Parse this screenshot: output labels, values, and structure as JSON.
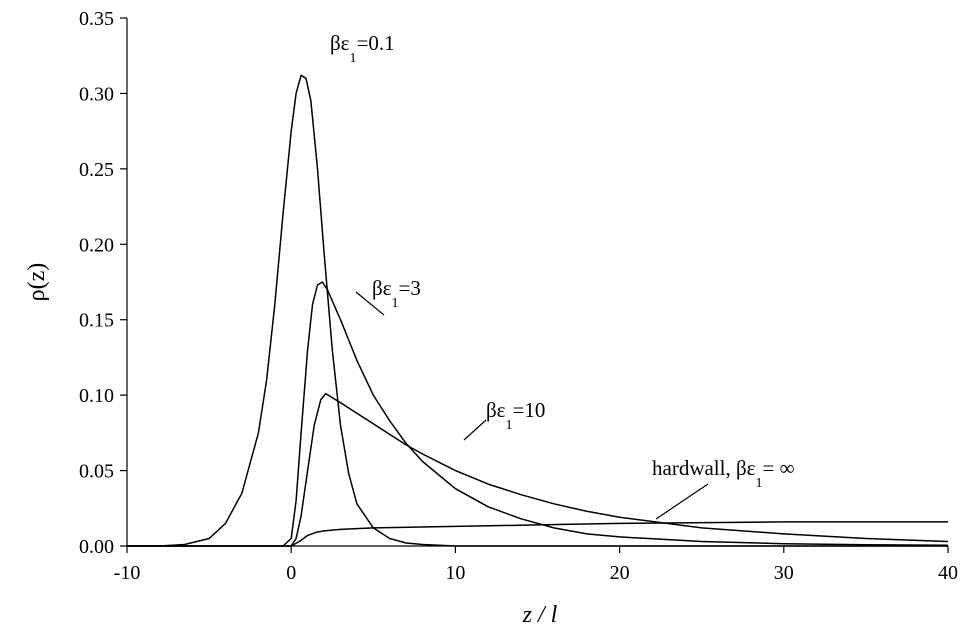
{
  "chart_data": {
    "type": "line",
    "title": "",
    "xlabel": "z / l",
    "ylabel": "ρ(z)",
    "xlim": [
      -10,
      40
    ],
    "ylim": [
      0,
      0.35
    ],
    "xticks": [
      "-10",
      "0",
      "10",
      "20",
      "30",
      "40"
    ],
    "yticks": [
      "0.00",
      "0.05",
      "0.10",
      "0.15",
      "0.20",
      "0.25",
      "0.30",
      "0.35"
    ],
    "xtick_values": [
      -10,
      0,
      10,
      20,
      30,
      40
    ],
    "ytick_values": [
      0,
      0.05,
      0.1,
      0.15,
      0.2,
      0.25,
      0.3,
      0.35
    ],
    "grid": false,
    "series": [
      {
        "key": "eps01",
        "label_prefix": "βε",
        "label_sub": "1",
        "label_suffix": "=0.1",
        "x": [
          -10,
          -8,
          -6.5,
          -5,
          -4,
          -3,
          -2,
          -1.5,
          -1,
          -0.5,
          0,
          0.3,
          0.6,
          0.9,
          1.2,
          1.6,
          2,
          2.5,
          3,
          3.5,
          4,
          5,
          6,
          7,
          8,
          10,
          14,
          20,
          30,
          40
        ],
        "y": [
          0,
          0,
          0.001,
          0.005,
          0.015,
          0.035,
          0.075,
          0.11,
          0.16,
          0.22,
          0.275,
          0.3,
          0.312,
          0.31,
          0.295,
          0.25,
          0.195,
          0.13,
          0.08,
          0.048,
          0.028,
          0.012,
          0.005,
          0.002,
          0.001,
          0,
          0,
          0,
          0,
          0
        ]
      },
      {
        "key": "eps3",
        "label_prefix": "βε",
        "label_sub": "1",
        "label_suffix": "=3",
        "x": [
          -10,
          -0.5,
          0,
          0.3,
          0.6,
          1,
          1.3,
          1.6,
          1.9,
          2.2,
          3,
          4,
          5,
          6,
          7,
          8,
          10,
          12,
          14,
          16,
          18,
          20,
          25,
          30,
          35,
          40
        ],
        "y": [
          0,
          0,
          0.005,
          0.03,
          0.075,
          0.13,
          0.16,
          0.173,
          0.175,
          0.17,
          0.15,
          0.123,
          0.1,
          0.083,
          0.068,
          0.056,
          0.038,
          0.026,
          0.018,
          0.012,
          0.008,
          0.006,
          0.003,
          0.0015,
          0.0008,
          0.0005
        ]
      },
      {
        "key": "eps10",
        "label_prefix": "βε",
        "label_sub": "1",
        "label_suffix": "=10",
        "x": [
          -10,
          0,
          0.3,
          0.6,
          1,
          1.4,
          1.8,
          2.1,
          3,
          4,
          5,
          6,
          7,
          8,
          10,
          12,
          14,
          16,
          18,
          20,
          25,
          30,
          35,
          40
        ],
        "y": [
          0,
          0,
          0.005,
          0.02,
          0.05,
          0.08,
          0.097,
          0.101,
          0.095,
          0.088,
          0.081,
          0.074,
          0.067,
          0.061,
          0.05,
          0.041,
          0.034,
          0.028,
          0.023,
          0.019,
          0.012,
          0.008,
          0.005,
          0.003
        ]
      },
      {
        "key": "hardwall",
        "label_prefix": "hardwall,  βε",
        "label_sub": "1",
        "label_suffix": "= ∞",
        "x": [
          -10,
          0,
          0.5,
          1,
          1.5,
          2,
          3,
          5,
          10,
          15,
          20,
          30,
          40
        ],
        "y": [
          0,
          0,
          0.003,
          0.007,
          0.009,
          0.01,
          0.011,
          0.012,
          0.013,
          0.014,
          0.015,
          0.016,
          0.016
        ]
      }
    ]
  }
}
